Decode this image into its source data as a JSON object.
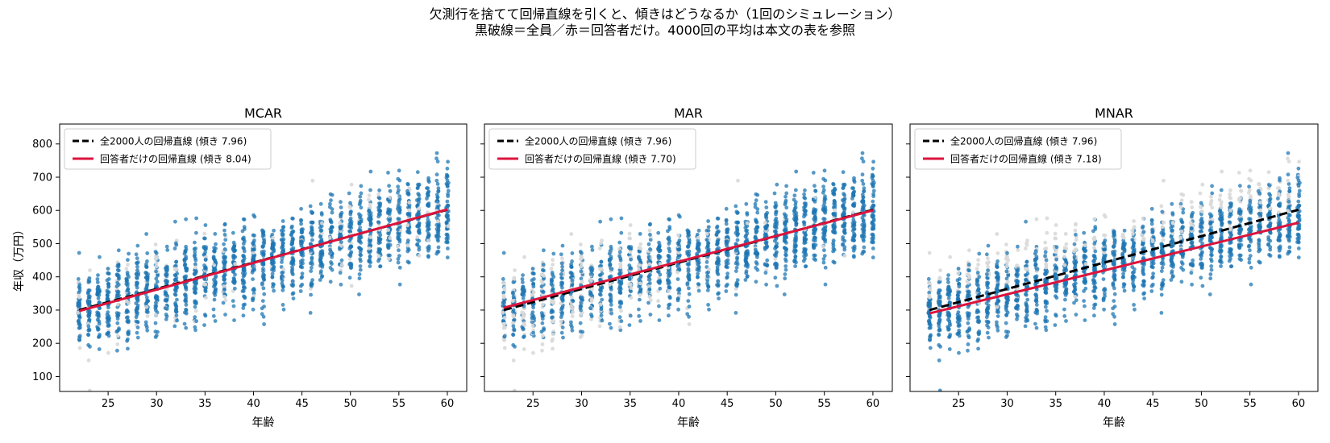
{
  "title_line1": "欠測行を捨てて回帰直線を引くと、傾きはどうなるか（1回のシミュレーション）",
  "title_line2": "黒破線＝全員／赤＝回答者だけ。4000回の平均は本文の表を参照",
  "colors": {
    "observed": "#1f77b4",
    "missing": "#d9d9d9",
    "full_line": "#000000",
    "resp_line": "#dc143c"
  },
  "chart_data": [
    {
      "type": "scatter",
      "title": "MCAR",
      "xlabel": "年齢",
      "ylabel": "年収（万円）",
      "xlim": [
        20,
        62
      ],
      "ylim": [
        55,
        860
      ],
      "xticks": [
        25,
        30,
        35,
        40,
        45,
        50,
        55,
        60
      ],
      "yticks": [
        100,
        200,
        300,
        400,
        500,
        600,
        700,
        800
      ],
      "grid": false,
      "legend_position": "top-left",
      "n_points": 2000,
      "ages": [
        22,
        60
      ],
      "lines": [
        {
          "name": "全2000人の回帰直線 (傾き 7.96)",
          "style": "dashed",
          "slope": 7.96,
          "x": [
            22,
            60
          ],
          "y": [
            300,
            602
          ]
        },
        {
          "name": "回答者だけの回帰直線 (傾き 8.04)",
          "style": "solid",
          "slope": 8.04,
          "x": [
            22,
            60
          ],
          "y": [
            297,
            603
          ]
        }
      ]
    },
    {
      "type": "scatter",
      "title": "MAR",
      "xlabel": "年齢",
      "ylabel": "",
      "xlim": [
        20,
        62
      ],
      "ylim": [
        55,
        860
      ],
      "xticks": [
        25,
        30,
        35,
        40,
        45,
        50,
        55,
        60
      ],
      "yticks": [
        100,
        200,
        300,
        400,
        500,
        600,
        700,
        800
      ],
      "grid": false,
      "legend_position": "top-left",
      "n_points": 2000,
      "ages": [
        22,
        60
      ],
      "lines": [
        {
          "name": "全2000人の回帰直線 (傾き 7.96)",
          "style": "dashed",
          "slope": 7.96,
          "x": [
            22,
            60
          ],
          "y": [
            300,
            602
          ]
        },
        {
          "name": "回答者だけの回帰直線 (傾き 7.70)",
          "style": "solid",
          "slope": 7.7,
          "x": [
            22,
            60
          ],
          "y": [
            307,
            600
          ]
        }
      ]
    },
    {
      "type": "scatter",
      "title": "MNAR",
      "xlabel": "年齢",
      "ylabel": "",
      "xlim": [
        20,
        62
      ],
      "ylim": [
        55,
        860
      ],
      "xticks": [
        25,
        30,
        35,
        40,
        45,
        50,
        55,
        60
      ],
      "yticks": [
        100,
        200,
        300,
        400,
        500,
        600,
        700,
        800
      ],
      "grid": false,
      "legend_position": "top-left",
      "n_points": 2000,
      "ages": [
        22,
        60
      ],
      "lines": [
        {
          "name": "全2000人の回帰直線 (傾き 7.96)",
          "style": "dashed",
          "slope": 7.96,
          "x": [
            22,
            60
          ],
          "y": [
            300,
            602
          ]
        },
        {
          "name": "回答者だけの回帰直線 (傾き 7.18)",
          "style": "solid",
          "slope": 7.18,
          "x": [
            22,
            60
          ],
          "y": [
            290,
            563
          ]
        }
      ]
    }
  ]
}
